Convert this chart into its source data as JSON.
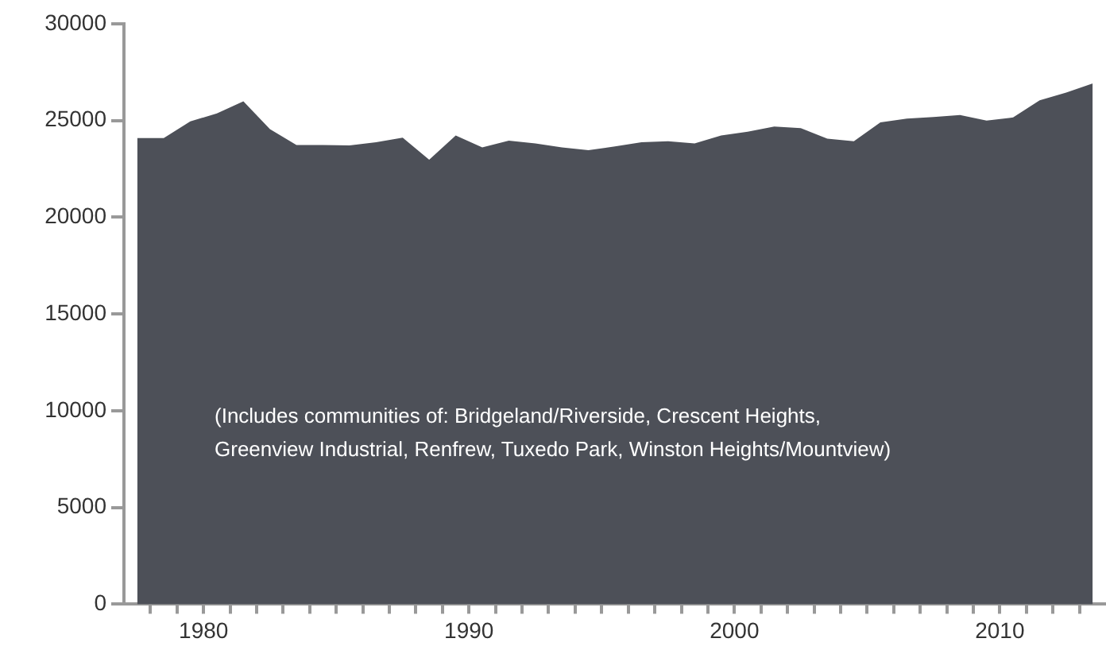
{
  "chart_data": {
    "type": "area",
    "color": "#4d5058",
    "x": [
      1977.5,
      1978.5,
      1979.5,
      1980.5,
      1981.5,
      1982.5,
      1983.5,
      1984.5,
      1985.5,
      1986.5,
      1987.5,
      1988.5,
      1989.5,
      1990.5,
      1991.5,
      1992.5,
      1993.5,
      1994.5,
      1995.5,
      1996.5,
      1997.5,
      1998.5,
      1999.5,
      2000.5,
      2001.5,
      2002.5,
      2003.5,
      2004.5,
      2005.5,
      2006.5,
      2007.5,
      2008.5,
      2009.5,
      2010.5,
      2011.5,
      2012.5,
      2013.5
    ],
    "values": [
      24100,
      24100,
      24960,
      25370,
      26000,
      24560,
      23740,
      23740,
      23720,
      23880,
      24120,
      22980,
      24230,
      23610,
      23960,
      23820,
      23610,
      23470,
      23660,
      23880,
      23930,
      23820,
      24230,
      24420,
      24690,
      24610,
      24070,
      23930,
      24910,
      25100,
      25180,
      25290,
      25000,
      25160,
      26050,
      26450,
      26920
    ],
    "xlim": [
      1977,
      2014
    ],
    "xticks": [
      {
        "value": 1978,
        "label": null
      },
      {
        "value": 1979,
        "label": null
      },
      1980,
      {
        "value": 1981,
        "label": null
      },
      {
        "value": 1982,
        "label": null
      },
      {
        "value": 1983,
        "label": null
      },
      {
        "value": 1984,
        "label": null
      },
      {
        "value": 1985,
        "label": null
      },
      {
        "value": 1986,
        "label": null
      },
      {
        "value": 1987,
        "label": null
      },
      {
        "value": 1988,
        "label": null
      },
      {
        "value": 1989,
        "label": null
      },
      1990,
      {
        "value": 1991,
        "label": null
      },
      {
        "value": 1992,
        "label": null
      },
      {
        "value": 1993,
        "label": null
      },
      {
        "value": 1994,
        "label": null
      },
      {
        "value": 1995,
        "label": null
      },
      {
        "value": 1996,
        "label": null
      },
      {
        "value": 1997,
        "label": null
      },
      {
        "value": 1998,
        "label": null
      },
      {
        "value": 1999,
        "label": null
      },
      2000,
      {
        "value": 2001,
        "label": null
      },
      {
        "value": 2002,
        "label": null
      },
      {
        "value": 2003,
        "label": null
      },
      {
        "value": 2004,
        "label": null
      },
      {
        "value": 2005,
        "label": null
      },
      {
        "value": 2006,
        "label": null
      },
      {
        "value": 2007,
        "label": null
      },
      {
        "value": 2008,
        "label": null
      },
      {
        "value": 2009,
        "label": null
      },
      2010,
      {
        "value": 2011,
        "label": null
      },
      {
        "value": 2012,
        "label": null
      },
      {
        "value": 2013,
        "label": null
      }
    ],
    "ylim": [
      0,
      30000
    ],
    "yticks": [
      0,
      5000,
      10000,
      15000,
      20000,
      25000,
      30000
    ],
    "grid": false,
    "legend": false,
    "annotations": [
      "(Includes communities of: Bridgeland/Riverside, Crescent Heights, Greenview Industrial, Renfrew, Tuxedo Park, Winston Heights/Mountview)"
    ]
  }
}
